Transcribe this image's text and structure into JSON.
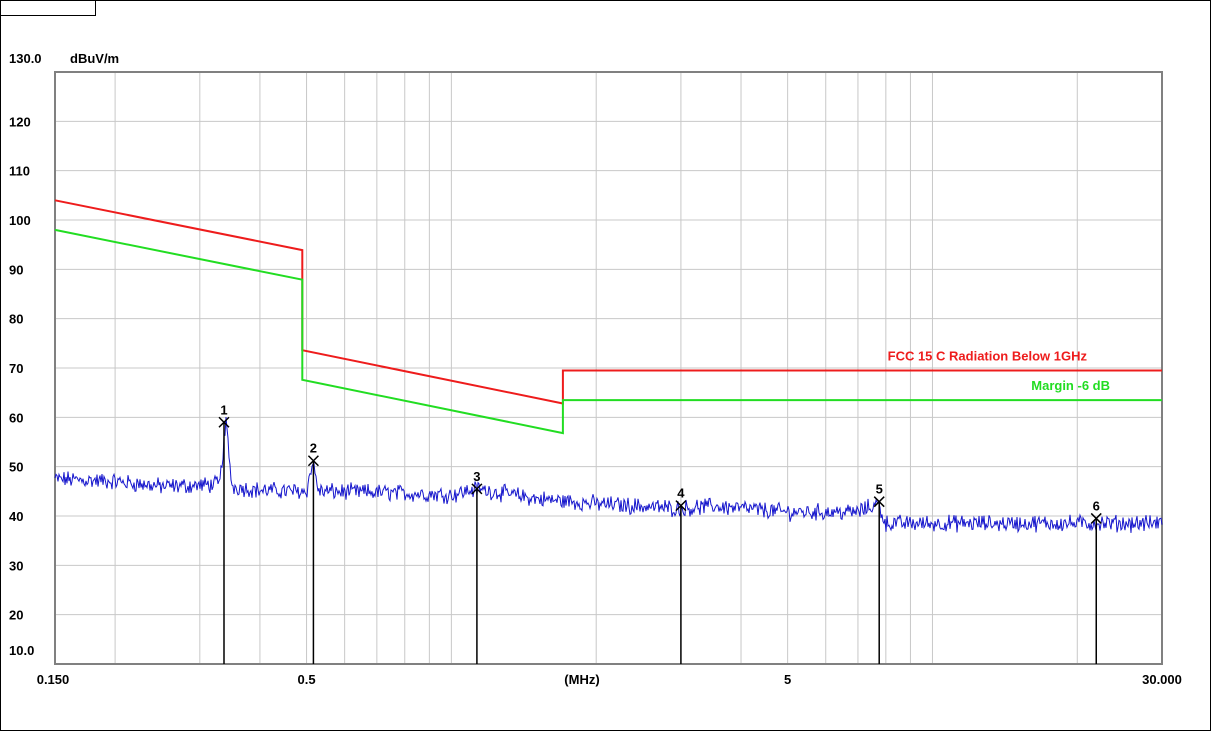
{
  "chart_data": {
    "type": "line",
    "ylabel": "dBuV/m",
    "xlabel": "(MHz)",
    "x_scale": "log",
    "xlim": [
      0.15,
      30.0
    ],
    "ylim": [
      10.0,
      130.0
    ],
    "grid": true,
    "y_ticks": [
      {
        "value": 130,
        "label": "130.0"
      },
      {
        "value": 120,
        "label": "120"
      },
      {
        "value": 110,
        "label": "110"
      },
      {
        "value": 100,
        "label": "100"
      },
      {
        "value": 90,
        "label": "90"
      },
      {
        "value": 80,
        "label": "80"
      },
      {
        "value": 70,
        "label": "70"
      },
      {
        "value": 60,
        "label": "60"
      },
      {
        "value": 50,
        "label": "50"
      },
      {
        "value": 40,
        "label": "40"
      },
      {
        "value": 30,
        "label": "30"
      },
      {
        "value": 20,
        "label": "20"
      },
      {
        "value": 10,
        "label": "10.0"
      }
    ],
    "x_ticks": [
      {
        "value": 0.15,
        "label": "0.150"
      },
      {
        "value": 0.5,
        "label": "0.5"
      },
      {
        "value": 5,
        "label": "5"
      },
      {
        "value": 30,
        "label": "30.000"
      }
    ],
    "series": [
      {
        "name": "FCC 15 C Radiation Below 1GHz",
        "color": "#ee1c1c",
        "points": [
          [
            0.15,
            104.0
          ],
          [
            0.49,
            93.9
          ],
          [
            0.49,
            73.6
          ],
          [
            1.705,
            62.8
          ],
          [
            1.705,
            69.5
          ],
          [
            30.0,
            69.5
          ]
        ]
      },
      {
        "name": "Margin -6 dB",
        "color": "#22dd22",
        "points": [
          [
            0.15,
            98.0
          ],
          [
            0.49,
            87.9
          ],
          [
            0.49,
            67.6
          ],
          [
            1.705,
            56.8
          ],
          [
            1.705,
            63.5
          ],
          [
            30.0,
            63.5
          ]
        ]
      }
    ],
    "trace": {
      "color": "#1515cc",
      "points": [
        [
          0.15,
          47.5
        ],
        [
          0.2,
          47.0
        ],
        [
          0.25,
          46.0
        ],
        [
          0.3,
          46.2
        ],
        [
          0.33,
          46.5
        ],
        [
          0.34,
          59.0
        ],
        [
          0.35,
          46.0
        ],
        [
          0.4,
          45.2
        ],
        [
          0.5,
          45.0
        ],
        [
          0.515,
          51.0
        ],
        [
          0.53,
          45.0
        ],
        [
          0.7,
          44.8
        ],
        [
          1.0,
          44.3
        ],
        [
          1.13,
          45.5
        ],
        [
          1.5,
          43.5
        ],
        [
          2.0,
          42.5
        ],
        [
          3.0,
          41.5
        ],
        [
          3.5,
          42.0
        ],
        [
          5.0,
          40.8
        ],
        [
          7.0,
          40.8
        ],
        [
          7.7,
          42.5
        ],
        [
          8.0,
          38.5
        ],
        [
          12.0,
          38.5
        ],
        [
          22.0,
          38.5
        ],
        [
          30.0,
          38.5
        ]
      ]
    },
    "markers": [
      {
        "label": "1",
        "x": 0.3368,
        "y": 59.0
      },
      {
        "label": "2",
        "x": 0.5167,
        "y": 51.2
      },
      {
        "label": "3",
        "x": 1.13,
        "y": 45.5
      },
      {
        "label": "4",
        "x": 3.0,
        "y": 42.1
      },
      {
        "label": "5",
        "x": 7.75,
        "y": 42.9
      },
      {
        "label": "6",
        "x": 21.9,
        "y": 39.5
      }
    ]
  }
}
